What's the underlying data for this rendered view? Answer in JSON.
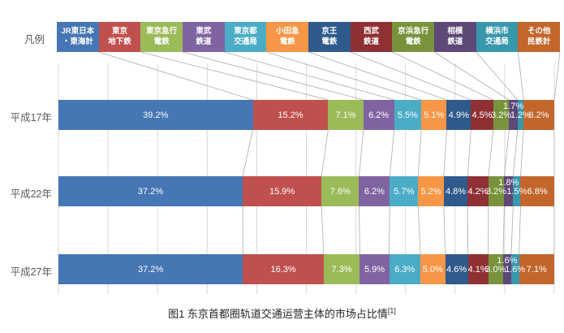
{
  "legend_label": "凡例",
  "caption": {
    "text": "图1 东京首都圈轨道交通运营主体的市场占比情",
    "superscript": "[1]"
  },
  "chart_data": {
    "type": "bar",
    "variant": "stacked-horizontal-percentage",
    "unit": "%",
    "xlim": [
      0,
      100
    ],
    "gridline_interval_percent": 10,
    "grid": true,
    "series_connector_lines": true,
    "legend_position": "top",
    "categories": [
      "平成17年",
      "平成22年",
      "平成27年"
    ],
    "series": [
      {
        "key": "jr-east-tokai",
        "name": "JR東日本・東海計",
        "legend_lines": "JR東日本\n・東海計",
        "color": "#4676B4",
        "values": [
          39.2,
          37.2,
          37.2
        ],
        "label_position": "inside"
      },
      {
        "key": "tokyo-metro",
        "name": "東京地下鉄",
        "legend_lines": "東京\n地下鉄",
        "color": "#C0504D",
        "values": [
          15.2,
          15.9,
          16.3
        ],
        "label_position": "inside"
      },
      {
        "key": "tokyu",
        "name": "東京急行電鉄",
        "legend_lines": "東京急行\n電鉄",
        "color": "#9BBB59",
        "values": [
          7.1,
          7.6,
          7.3
        ],
        "label_position": "inside"
      },
      {
        "key": "tobu",
        "name": "東武鉄道",
        "legend_lines": "東武\n鉄道",
        "color": "#8064A2",
        "values": [
          6.2,
          6.2,
          5.9
        ],
        "label_position": "inside"
      },
      {
        "key": "toei",
        "name": "東京都交通局",
        "legend_lines": "東京都\n交通局",
        "color": "#4BACC6",
        "values": [
          5.5,
          5.7,
          6.3
        ],
        "label_position": "inside"
      },
      {
        "key": "odakyu",
        "name": "小田急電鉄",
        "legend_lines": "小田急\n電鉄",
        "color": "#F79646",
        "values": [
          5.1,
          5.2,
          5.0
        ],
        "label_position": "inside"
      },
      {
        "key": "keio",
        "name": "京王電鉄",
        "legend_lines": "京王\n電鉄",
        "color": "#2F5A8C",
        "values": [
          4.9,
          4.8,
          4.6
        ],
        "label_position": "inside"
      },
      {
        "key": "seibu",
        "name": "西武鉄道",
        "legend_lines": "西武\n鉄道",
        "color": "#8F3134",
        "values": [
          4.5,
          4.2,
          4.1
        ],
        "label_position": "inside"
      },
      {
        "key": "keikyu",
        "name": "京浜急行電鉄",
        "legend_lines": "京浜急行\n電鉄",
        "color": "#78933C",
        "values": [
          3.2,
          3.2,
          3.0
        ],
        "label_position": "inside"
      },
      {
        "key": "sagami",
        "name": "相模鉄道",
        "legend_lines": "相模\n鉄道",
        "color": "#5E4877",
        "values": [
          1.7,
          1.8,
          1.6
        ],
        "label_position": "above"
      },
      {
        "key": "yokohama-city",
        "name": "横浜市交通局",
        "legend_lines": "横浜市\n交通局",
        "color": "#3897AD",
        "values": [
          1.2,
          1.5,
          1.6
        ],
        "label_position": "inside"
      },
      {
        "key": "other-private",
        "name": "その他民鉄計",
        "legend_lines": "その他\n民鉄計",
        "color": "#C2662B",
        "values": [
          6.2,
          6.8,
          7.1
        ],
        "label_position": "inside"
      }
    ],
    "colors": {
      "gridline": "#D9D9D9",
      "series_line": "#ABABAB",
      "axis_text": "#595959",
      "bar_label_text": "#FFFFFF"
    }
  }
}
